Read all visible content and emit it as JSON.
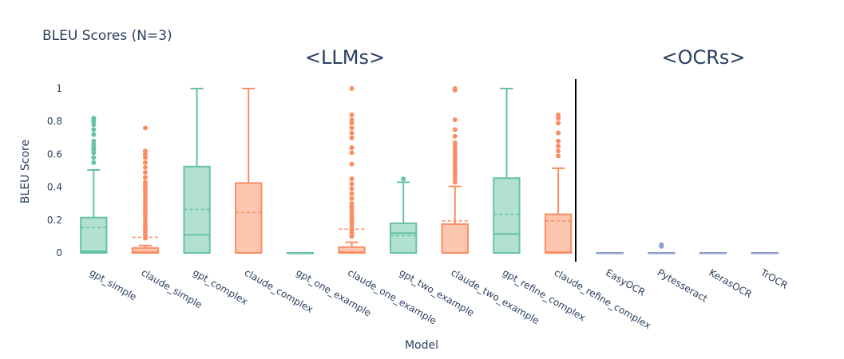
{
  "chart_data": {
    "type": "box",
    "title": "BLEU Scores (N=3)",
    "xlabel": "Model",
    "ylabel": "BLEU Score",
    "ylim": [
      -0.05,
      1.05
    ],
    "yticks": [
      0,
      0.2,
      0.4,
      0.6,
      0.8,
      1
    ],
    "grid": false,
    "legend": false,
    "group_labels": [
      {
        "text": "<LLMs>"
      },
      {
        "text": "<OCRs>"
      }
    ],
    "colors": {
      "gpt": "#66c2a5",
      "claude": "#fc8d62",
      "ocr": "#8da0cb"
    },
    "categories": [
      "gpt_simple",
      "claude_simple",
      "gpt_complex",
      "claude_complex",
      "gpt_one_example",
      "claude_one_example",
      "gpt_two_example",
      "claude_two_example",
      "gpt_refine_complex",
      "claude_refine_complex",
      "EasyOCR",
      "Pytesseract",
      "KerasOCR",
      "TrOCR"
    ],
    "boxes": [
      {
        "name": "gpt_simple",
        "color": "gpt",
        "min": 0,
        "q1": 0,
        "median": 0.01,
        "q3": 0.215,
        "max": 0.505,
        "mean": 0.155,
        "outliers": [
          0.55,
          0.58,
          0.61,
          0.63,
          0.64,
          0.66,
          0.68,
          0.72,
          0.75,
          0.78,
          0.8,
          0.81,
          0.82
        ]
      },
      {
        "name": "claude_simple",
        "color": "claude",
        "min": 0,
        "q1": 0,
        "median": 0.005,
        "q3": 0.03,
        "max": 0.045,
        "mean": 0.095,
        "outliers": [
          0.09,
          0.11,
          0.13,
          0.15,
          0.17,
          0.19,
          0.21,
          0.23,
          0.25,
          0.27,
          0.29,
          0.31,
          0.33,
          0.35,
          0.37,
          0.39,
          0.41,
          0.43,
          0.46,
          0.49,
          0.52,
          0.55,
          0.58,
          0.6,
          0.62,
          0.76
        ]
      },
      {
        "name": "gpt_complex",
        "color": "gpt",
        "min": 0,
        "q1": 0,
        "median": 0.11,
        "q3": 0.525,
        "max": 1,
        "mean": 0.265,
        "outliers": []
      },
      {
        "name": "claude_complex",
        "color": "claude",
        "min": 0,
        "q1": 0,
        "median": 0,
        "q3": 0.425,
        "max": 1,
        "mean": 0.245,
        "outliers": []
      },
      {
        "name": "gpt_one_example",
        "color": "gpt",
        "min": 0,
        "q1": 0,
        "median": 0,
        "q3": 0,
        "max": 0,
        "mean": 0,
        "outliers": []
      },
      {
        "name": "claude_one_example",
        "color": "claude",
        "min": 0,
        "q1": 0,
        "median": 0.005,
        "q3": 0.035,
        "max": 0.065,
        "mean": 0.145,
        "outliers": [
          0.1,
          0.12,
          0.14,
          0.16,
          0.18,
          0.2,
          0.22,
          0.24,
          0.26,
          0.28,
          0.3,
          0.33,
          0.36,
          0.39,
          0.42,
          0.45,
          0.54,
          0.61,
          0.64,
          0.7,
          0.73,
          0.76,
          0.79,
          0.81,
          0.84,
          1.0
        ]
      },
      {
        "name": "gpt_two_example",
        "color": "gpt",
        "min": 0,
        "q1": 0,
        "median": 0.12,
        "q3": 0.18,
        "max": 0.43,
        "mean": 0.105,
        "outliers": [
          0.45
        ]
      },
      {
        "name": "claude_two_example",
        "color": "claude",
        "min": 0,
        "q1": 0,
        "median": 0,
        "q3": 0.175,
        "max": 0.405,
        "mean": 0.195,
        "outliers": [
          0.43,
          0.45,
          0.47,
          0.49,
          0.51,
          0.53,
          0.55,
          0.57,
          0.59,
          0.61,
          0.63,
          0.65,
          0.67,
          0.71,
          0.75,
          0.81,
          0.99,
          1.0
        ]
      },
      {
        "name": "gpt_refine_complex",
        "color": "gpt",
        "min": 0,
        "q1": 0,
        "median": 0.115,
        "q3": 0.455,
        "max": 1,
        "mean": 0.235,
        "outliers": []
      },
      {
        "name": "claude_refine_complex",
        "color": "claude",
        "min": 0,
        "q1": 0,
        "median": 0.005,
        "q3": 0.235,
        "max": 0.515,
        "mean": 0.195,
        "outliers": [
          0.59,
          0.62,
          0.65,
          0.68,
          0.73,
          0.79,
          0.82,
          0.84
        ]
      },
      {
        "name": "EasyOCR",
        "color": "ocr",
        "min": 0,
        "q1": 0,
        "median": 0,
        "q3": 0,
        "max": 0,
        "mean": 0,
        "outliers": []
      },
      {
        "name": "Pytesseract",
        "color": "ocr",
        "min": 0,
        "q1": 0,
        "median": 0,
        "q3": 0,
        "max": 0,
        "mean": 0,
        "outliers": [
          0.04,
          0.05
        ]
      },
      {
        "name": "KerasOCR",
        "color": "ocr",
        "min": 0,
        "q1": 0,
        "median": 0,
        "q3": 0,
        "max": 0,
        "mean": 0,
        "outliers": []
      },
      {
        "name": "TrOCR",
        "color": "ocr",
        "min": 0,
        "q1": 0,
        "median": 0,
        "q3": 0,
        "max": 0,
        "mean": 0,
        "outliers": []
      }
    ]
  }
}
